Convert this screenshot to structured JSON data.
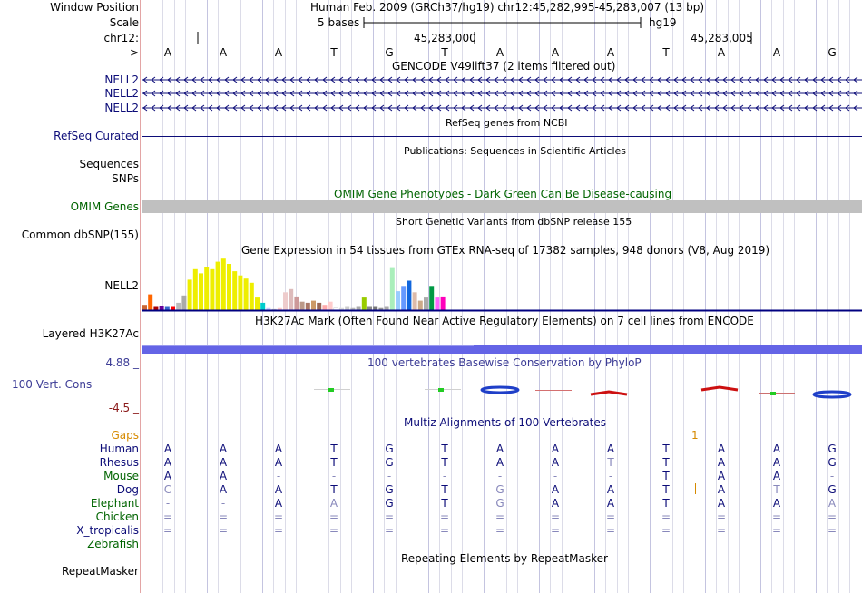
{
  "header": {
    "window_position_label": "Window Position",
    "window_position_value": "Human Feb. 2009 (GRCh37/hg19)   chr12:45,282,995-45,283,007 (13 bp)",
    "scale_label": "Scale",
    "scale_value": "5 bases",
    "scale_db": "hg19",
    "chrom_label": "chr12:",
    "coord_1": "45,283,000",
    "coord_2": "45,283,005",
    "strand_label": "--->"
  },
  "bases": [
    "A",
    "A",
    "A",
    "T",
    "G",
    "T",
    "A",
    "A",
    "A",
    "T",
    "A",
    "A",
    "G"
  ],
  "tracks": {
    "gencode": {
      "title": "GENCODE V49lift37 (2 items filtered out)",
      "items": [
        "NELL2",
        "NELL2",
        "NELL2"
      ],
      "color": "#0c0c78"
    },
    "refseq": {
      "title": "RefSeq genes from NCBI",
      "label": "RefSeq Curated",
      "color": "#0c0c78"
    },
    "publications": {
      "title": "Publications: Sequences in Scientific Articles",
      "label_1": "Sequences",
      "label_2": "SNPs"
    },
    "omim": {
      "title": "OMIM Gene Phenotypes - Dark Green Can Be Disease-causing",
      "label": "OMIM Genes",
      "color": "#006400"
    },
    "dbsnp": {
      "title": "Short Genetic Variants from dbSNP release 155",
      "label": "Common dbSNP(155)"
    },
    "gtex": {
      "title": "Gene Expression in 54 tissues from GTEx RNA-seq of 17382 samples, 948 donors (V8, Aug 2019)",
      "label": "NELL2"
    },
    "h3k27ac": {
      "title": "H3K27Ac Mark (Often Found Near Active Regulatory Elements) on 7 cell lines from ENCODE",
      "label": "Layered H3K27Ac",
      "color": "#6464e6"
    },
    "phylop": {
      "title": "100 vertebrates Basewise Conservation by PhyloP",
      "label": "100 Vert. Cons",
      "max": "4.88 _",
      "min": "-4.5 _",
      "color": "#3c3c96"
    },
    "multiz": {
      "title": "Multiz Alignments of 100 Vertebrates",
      "gaps_label": "Gaps",
      "gap_mark": "1",
      "species": [
        {
          "name": "Human",
          "color": "#0c0c78",
          "seq": [
            "A",
            "A",
            "A",
            "T",
            "G",
            "T",
            "A",
            "A",
            "A",
            "T",
            "A",
            "A",
            "G"
          ]
        },
        {
          "name": "Rhesus",
          "color": "#0c0c78",
          "seq": [
            "A",
            "A",
            "A",
            "T",
            "G",
            "T",
            "A",
            "A",
            "T",
            "T",
            "A",
            "A",
            "G"
          ]
        },
        {
          "name": "Mouse",
          "color": "#006400",
          "seq": [
            "A",
            "A",
            "-",
            "-",
            "-",
            "-",
            "-",
            "-",
            "-",
            "T",
            "A",
            "A",
            "-"
          ]
        },
        {
          "name": "Dog",
          "color": "#0c0c78",
          "seq": [
            "C",
            "A",
            "A",
            "T",
            "G",
            "T",
            "G",
            "A",
            "A",
            "T",
            "A",
            "T",
            "G"
          ]
        },
        {
          "name": "Elephant",
          "color": "#006400",
          "seq": [
            "-",
            "-",
            "A",
            "A",
            "G",
            "T",
            "G",
            "A",
            "A",
            "T",
            "A",
            "A",
            "A"
          ]
        },
        {
          "name": "Chicken",
          "color": "#006400",
          "seq": [
            "=",
            "=",
            "=",
            "=",
            "=",
            "=",
            "=",
            "=",
            "=",
            "=",
            "=",
            "=",
            "="
          ]
        },
        {
          "name": "X_tropicalis",
          "color": "#0c0c78",
          "seq": [
            "=",
            "=",
            "=",
            "=",
            "=",
            "=",
            "=",
            "=",
            "=",
            "=",
            "=",
            "=",
            "="
          ]
        },
        {
          "name": "Zebrafish",
          "color": "#006400",
          "seq": [
            "",
            "",
            "",
            "",
            "",
            "",
            "",
            "",
            "",
            "",
            "",
            "",
            ""
          ]
        }
      ]
    },
    "repeatmasker": {
      "title": "Repeating Elements by RepeatMasker",
      "label": "RepeatMasker"
    }
  },
  "gtex_bars": [
    {
      "v": 0.1,
      "c": "#cc6633"
    },
    {
      "v": 0.3,
      "c": "#ff6600"
    },
    {
      "v": 0.06,
      "c": "#aa0000"
    },
    {
      "v": 0.08,
      "c": "#660099"
    },
    {
      "v": 0.06,
      "c": "#3366cc"
    },
    {
      "v": 0.06,
      "c": "#ff0000"
    },
    {
      "v": 0.14,
      "c": "#bbbbbb"
    },
    {
      "v": 0.28,
      "c": "#aaaaaa"
    },
    {
      "v": 0.58,
      "c": "#eeee00"
    },
    {
      "v": 0.78,
      "c": "#eeee00"
    },
    {
      "v": 0.7,
      "c": "#eeee00"
    },
    {
      "v": 0.82,
      "c": "#eeee00"
    },
    {
      "v": 0.78,
      "c": "#eeee00"
    },
    {
      "v": 0.92,
      "c": "#eeee00"
    },
    {
      "v": 0.98,
      "c": "#eeee00"
    },
    {
      "v": 0.88,
      "c": "#eeee00"
    },
    {
      "v": 0.74,
      "c": "#eeee00"
    },
    {
      "v": 0.66,
      "c": "#eeee00"
    },
    {
      "v": 0.6,
      "c": "#eeee00"
    },
    {
      "v": 0.52,
      "c": "#eeee00"
    },
    {
      "v": 0.24,
      "c": "#eeee00"
    },
    {
      "v": 0.14,
      "c": "#00cccc"
    },
    {
      "v": 0.04,
      "c": "#ccccff"
    },
    {
      "v": 0.02,
      "c": "#cccccc"
    },
    {
      "v": 0.04,
      "c": "#ffcccc"
    },
    {
      "v": 0.34,
      "c": "#eecccc"
    },
    {
      "v": 0.4,
      "c": "#ddbbbb"
    },
    {
      "v": 0.26,
      "c": "#cc9999"
    },
    {
      "v": 0.16,
      "c": "#bb9988"
    },
    {
      "v": 0.14,
      "c": "#aa7766"
    },
    {
      "v": 0.18,
      "c": "#cc9966"
    },
    {
      "v": 0.14,
      "c": "#996655"
    },
    {
      "v": 0.1,
      "c": "#ffaaaa"
    },
    {
      "v": 0.16,
      "c": "#ffcccc"
    },
    {
      "v": 0.04,
      "c": "#ffffff"
    },
    {
      "v": 0.04,
      "c": "#dddddd"
    },
    {
      "v": 0.06,
      "c": "#cccccc"
    },
    {
      "v": 0.04,
      "c": "#bbbbbb"
    },
    {
      "v": 0.06,
      "c": "#aaaaaa"
    },
    {
      "v": 0.24,
      "c": "#99cc00"
    },
    {
      "v": 0.06,
      "c": "#888888"
    },
    {
      "v": 0.06,
      "c": "#777777"
    },
    {
      "v": 0.04,
      "c": "#999999"
    },
    {
      "v": 0.06,
      "c": "#aaaaaa"
    },
    {
      "v": 0.8,
      "c": "#aaeebb"
    },
    {
      "v": 0.36,
      "c": "#99ccff"
    },
    {
      "v": 0.46,
      "c": "#6699ff"
    },
    {
      "v": 0.56,
      "c": "#1166dd"
    },
    {
      "v": 0.34,
      "c": "#ddbbaa"
    },
    {
      "v": 0.18,
      "c": "#ccaa88"
    },
    {
      "v": 0.24,
      "c": "#aaaaaa"
    },
    {
      "v": 0.46,
      "c": "#009944"
    },
    {
      "v": 0.24,
      "c": "#ff66ff"
    },
    {
      "v": 0.26,
      "c": "#ff00bb"
    }
  ]
}
